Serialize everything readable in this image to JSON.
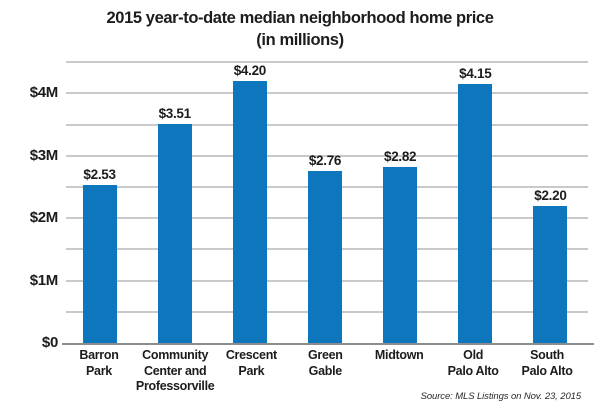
{
  "title": {
    "line1": "2015 year-to-date median neighborhood home price",
    "line2": "(in millions)"
  },
  "source": "Source: MLS Listings on Nov. 23, 2015",
  "chart_data": {
    "type": "bar",
    "title": "2015 year-to-date median neighborhood home price (in millions)",
    "categories": [
      "Barron Park",
      "Community Center and Professorville",
      "Crescent Park",
      "Green Gable",
      "Midtown",
      "Old Palo Alto",
      "South Palo Alto"
    ],
    "category_lines": [
      [
        "Barron",
        "Park"
      ],
      [
        "Community",
        "Center and",
        "Professorville"
      ],
      [
        "Crescent",
        "Park"
      ],
      [
        "Green",
        "Gable"
      ],
      [
        "Midtown"
      ],
      [
        "Old",
        "Palo Alto"
      ],
      [
        "South",
        "Palo Alto"
      ]
    ],
    "values": [
      2.53,
      3.51,
      4.2,
      2.76,
      2.82,
      4.15,
      2.2
    ],
    "value_labels": [
      "$2.53",
      "$3.51",
      "$4.20",
      "$2.76",
      "$2.82",
      "$4.15",
      "$2.20"
    ],
    "xlabel": "",
    "ylabel": "",
    "y_ticks": [
      "$0",
      "$1M",
      "$2M",
      "$3M",
      "$4M"
    ],
    "y_tick_values": [
      0,
      1,
      2,
      3,
      4
    ],
    "ylim": [
      0,
      4.5
    ],
    "gridline_step": 0.5,
    "grid": true,
    "legend": false,
    "bar_color": "#0e76bd",
    "gridline_color": "#c7c9cb",
    "axis_color": "#8b8e91",
    "text_color": "#1b1c1e"
  }
}
